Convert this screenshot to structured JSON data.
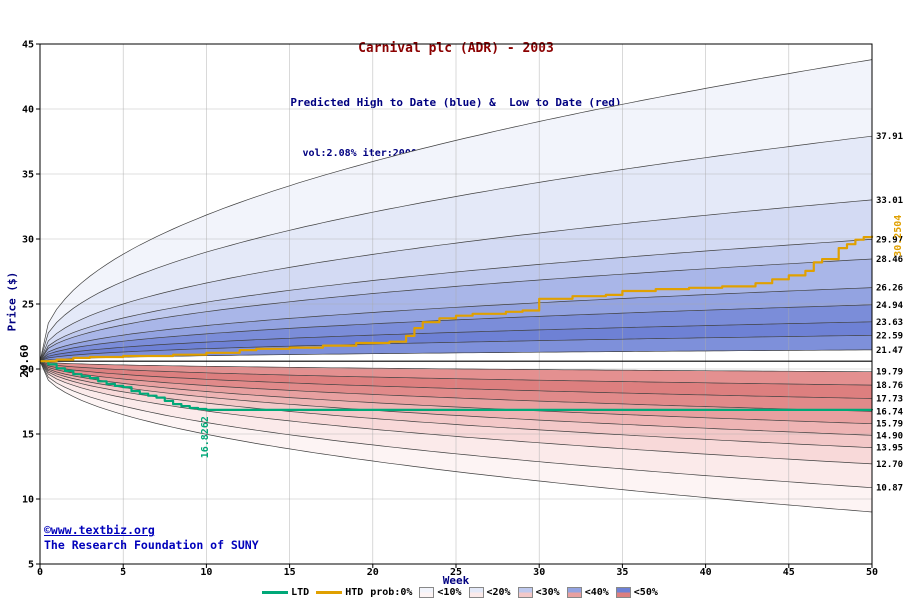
{
  "title": {
    "main": "Carnival plc (ADR) - 2003",
    "sub": "Predicted High to Date (blue) &  Low to Date (red)",
    "params": "vol:2.08% iter:2000 step:10 hurst:0.57 drift:0.07/0"
  },
  "watermark": {
    "line1": "©www.textbiz.org",
    "line2": "The Research Foundation of SUNY"
  },
  "colors": {
    "title": "#8b0000",
    "subtitle": "#000080",
    "axis_label": "#000080",
    "watermark": "#0000bb",
    "htd": "#e0a000",
    "ltd": "#00a878",
    "grid": "#aaaaaa",
    "boundary": "#404040",
    "frame": "#000000"
  },
  "chart_data": {
    "type": "area",
    "title": "Carnival plc (ADR) - 2003",
    "subtitle": "Predicted High to Date (blue) &  Low to Date (red)",
    "params": "vol:2.08% iter:2000 step:10 hurst:0.57 drift:0.07/0",
    "xlabel": "Week",
    "ylabel": "Price ($)",
    "xlim": [
      0,
      50
    ],
    "ylim": [
      5,
      45
    ],
    "x_ticks": [
      0,
      5,
      10,
      15,
      20,
      25,
      30,
      35,
      40,
      45,
      50
    ],
    "y_ticks": [
      5,
      10,
      15,
      20,
      25,
      30,
      35,
      40,
      45
    ],
    "start_price": 20.6,
    "start_label": "20.60",
    "growth_exponent": 0.45,
    "high_bands": {
      "boundaries": [
        21.47,
        22.59,
        23.63,
        24.94,
        26.26,
        28.46,
        29.97,
        33.01,
        37.91,
        43.8
      ],
      "labels": [
        "21.47",
        "22.59",
        "23.63",
        "24.94",
        "26.26",
        "28.46",
        "29.97",
        "33.01",
        "37.91",
        ""
      ],
      "fills": [
        "#7e90da",
        "#6e81d5",
        "#7b8dd9",
        "#93a3e1",
        "#a9b6e8",
        "#bfc9ee",
        "#d3daf3",
        "#e4e9f8",
        "#f2f4fb"
      ]
    },
    "low_bands": {
      "boundaries": [
        19.79,
        18.76,
        17.73,
        16.74,
        15.79,
        14.9,
        13.95,
        12.7,
        10.87,
        9.0
      ],
      "labels": [
        "19.79",
        "18.76",
        "17.73",
        "16.74",
        "15.79",
        "14.90",
        "13.95",
        "12.70",
        "10.87",
        ""
      ],
      "fills": [
        "#e49090",
        "#dd7f7f",
        "#e18a8a",
        "#e8a0a0",
        "#eeb4b4",
        "#f3c8c8",
        "#f8d9d9",
        "#fbeaea",
        "#fdf4f4"
      ]
    },
    "htd": {
      "label": "HTD",
      "final_label": "30.2504",
      "steps": [
        [
          0,
          20.6
        ],
        [
          1,
          20.72
        ],
        [
          2,
          20.85
        ],
        [
          3,
          20.92
        ],
        [
          5,
          21.0
        ],
        [
          8,
          21.1
        ],
        [
          10,
          21.25
        ],
        [
          12,
          21.45
        ],
        [
          13,
          21.55
        ],
        [
          15,
          21.65
        ],
        [
          17,
          21.8
        ],
        [
          19,
          22.0
        ],
        [
          21,
          22.1
        ],
        [
          22,
          22.55
        ],
        [
          22.5,
          23.15
        ],
        [
          23,
          23.6
        ],
        [
          24,
          23.9
        ],
        [
          25,
          24.1
        ],
        [
          26,
          24.25
        ],
        [
          28,
          24.4
        ],
        [
          29,
          24.5
        ],
        [
          30,
          25.4
        ],
        [
          32,
          25.6
        ],
        [
          34,
          25.7
        ],
        [
          35,
          26.0
        ],
        [
          37,
          26.15
        ],
        [
          39,
          26.25
        ],
        [
          41,
          26.35
        ],
        [
          43,
          26.6
        ],
        [
          44,
          26.9
        ],
        [
          45,
          27.2
        ],
        [
          46,
          27.55
        ],
        [
          46.5,
          28.2
        ],
        [
          47,
          28.45
        ],
        [
          48,
          29.3
        ],
        [
          48.5,
          29.6
        ],
        [
          49,
          29.95
        ],
        [
          49.5,
          30.15
        ],
        [
          50,
          30.25
        ]
      ]
    },
    "ltd": {
      "label": "LTD",
      "final_label": "16.8262",
      "steps": [
        [
          0,
          20.6
        ],
        [
          0.5,
          20.35
        ],
        [
          1,
          20.05
        ],
        [
          1.5,
          19.85
        ],
        [
          2,
          19.6
        ],
        [
          2.5,
          19.45
        ],
        [
          3,
          19.3
        ],
        [
          3.5,
          19.05
        ],
        [
          4,
          18.85
        ],
        [
          4.5,
          18.7
        ],
        [
          5,
          18.6
        ],
        [
          5.5,
          18.3
        ],
        [
          6,
          18.1
        ],
        [
          6.5,
          17.95
        ],
        [
          7,
          17.8
        ],
        [
          7.5,
          17.55
        ],
        [
          8,
          17.3
        ],
        [
          8.5,
          17.15
        ],
        [
          9,
          17.0
        ],
        [
          9.5,
          16.92
        ],
        [
          10,
          16.85
        ],
        [
          50,
          16.83
        ]
      ]
    },
    "legend": {
      "prob_label": "prob:0%",
      "levels": [
        {
          "label": "<10%",
          "high": "#f2f4fb",
          "low": "#fdf4f4"
        },
        {
          "label": "<20%",
          "high": "#e4e9f8",
          "low": "#fbeaea"
        },
        {
          "label": "<30%",
          "high": "#bfc9ee",
          "low": "#f3c8c8"
        },
        {
          "label": "<40%",
          "high": "#93a3e1",
          "low": "#e8a0a0"
        },
        {
          "label": "<50%",
          "high": "#6e81d5",
          "low": "#dd7f7f"
        }
      ]
    }
  }
}
